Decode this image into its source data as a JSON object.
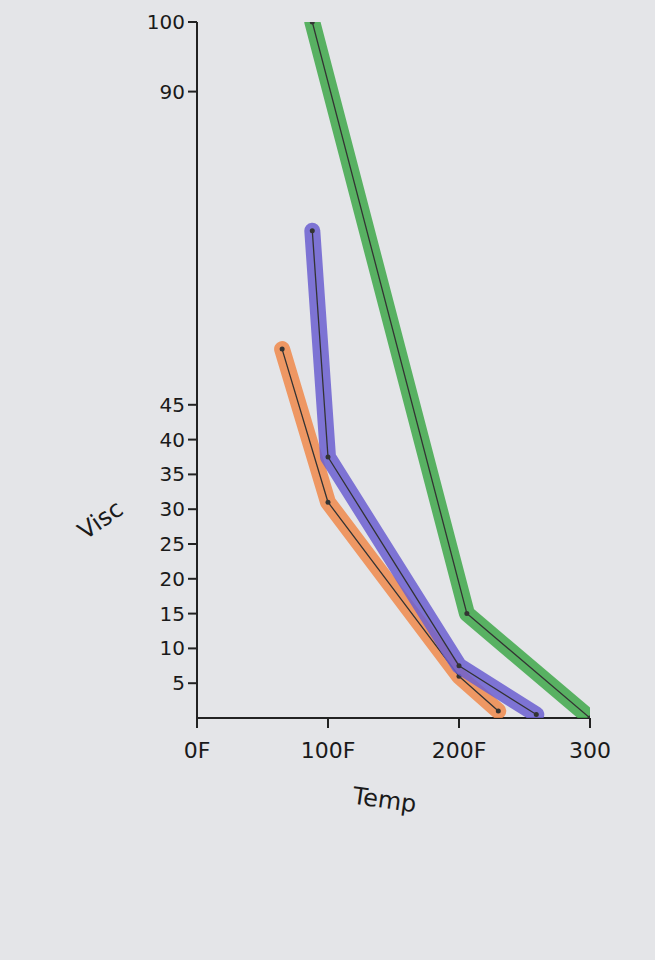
{
  "chart_data": {
    "type": "line",
    "x_label": "Temp",
    "y_label": "Visc",
    "xlim": [
      0,
      300
    ],
    "xticks": [
      {
        "value": 0,
        "label": "0F"
      },
      {
        "value": 100,
        "label": "100F"
      },
      {
        "value": 200,
        "label": "200F"
      },
      300
    ],
    "ylim": [
      0,
      100
    ],
    "yticks": [
      5,
      10,
      15,
      20,
      25,
      30,
      35,
      40,
      45,
      90,
      100
    ],
    "series": [
      {
        "color": "#f08a4b",
        "x": [
          65,
          100,
          200,
          230
        ],
        "values": [
          53,
          31,
          6,
          1
        ]
      },
      {
        "color": "#6b5fd0",
        "x": [
          88,
          100,
          200,
          259
        ],
        "values": [
          70,
          37.5,
          7.5,
          0.5
        ]
      },
      {
        "color": "#3fa84a",
        "x": [
          88,
          206,
          300
        ],
        "values": [
          100,
          15,
          0
        ]
      }
    ]
  }
}
